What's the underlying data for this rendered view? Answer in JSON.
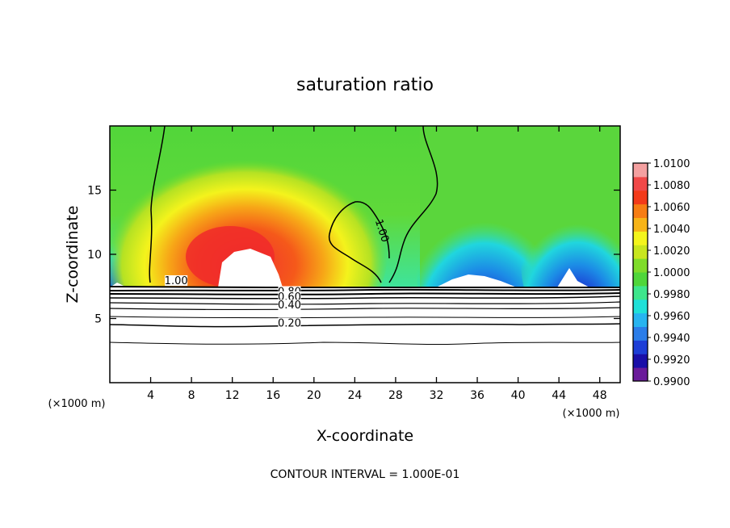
{
  "chart_data": {
    "type": "heatmap",
    "title": "saturation ratio",
    "xlabel": "X-coordinate",
    "ylabel": "Z-coordinate",
    "x_unit": "(×1000 m)",
    "y_unit": "(×1000 m)",
    "xlim": [
      0,
      50
    ],
    "ylim": [
      0,
      20
    ],
    "x_ticks": [
      4,
      8,
      12,
      16,
      20,
      24,
      28,
      32,
      36,
      40,
      44,
      48
    ],
    "y_ticks": [
      5,
      10,
      15
    ],
    "colorbar": {
      "min": 0.99,
      "max": 1.01,
      "labels": [
        "1.0100",
        "1.0080",
        "1.0060",
        "1.0040",
        "1.0020",
        "1.0000",
        "0.9980",
        "0.9960",
        "0.9940",
        "0.9920",
        "0.9900"
      ],
      "colors": [
        "#6a1b9a",
        "#1a0fa8",
        "#1d3ed6",
        "#2b7de9",
        "#27b4f0",
        "#1fe0d8",
        "#3ee68c",
        "#4fd63a",
        "#7fdc2a",
        "#c8e61e",
        "#f4f51c",
        "#f7b418",
        "#f77d14",
        "#f33a1a",
        "#f04848",
        "#f4a0a0"
      ]
    },
    "contour_labels": [
      {
        "text": "1.00",
        "x": 6.5,
        "z": 7.8
      },
      {
        "text": "1.00",
        "x": 26.5,
        "z": 11.8
      },
      {
        "text": "0.80",
        "x": 17.6,
        "z": 6.95
      },
      {
        "text": "0.60",
        "x": 17.6,
        "z": 6.55
      },
      {
        "text": "0.40",
        "x": 17.6,
        "z": 5.9
      },
      {
        "text": "0.20",
        "x": 17.6,
        "z": 4.5
      }
    ],
    "footnote": "CONTOUR INTERVAL = 1.000E-01"
  }
}
